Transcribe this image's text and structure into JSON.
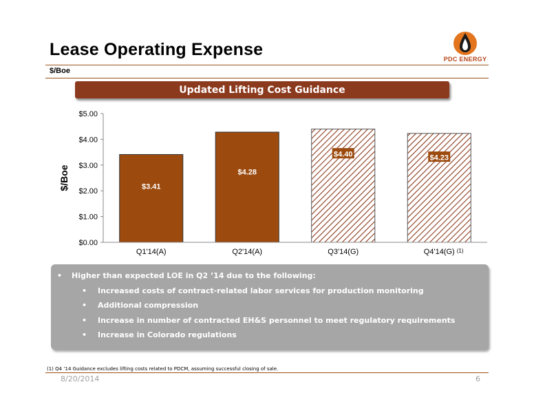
{
  "header": {
    "title": "Lease Operating Expense",
    "subtitle": "$/Boe",
    "logo_text": "PDC ENERGY"
  },
  "banner": "Updated Lifting Cost Guidance",
  "colors": {
    "accent": "#9b4f1a",
    "bar_fill": "#9c4a0e",
    "banner": "#8c3a1e",
    "notes_box": "#a6a6a6",
    "logo_orange": "#e2751e"
  },
  "chart_data": {
    "type": "bar",
    "ylabel": "$/Boe",
    "ylim": [
      0,
      5
    ],
    "yticks": [
      "$0.00",
      "$1.00",
      "$2.00",
      "$3.00",
      "$4.00",
      "$5.00"
    ],
    "categories": [
      "Q1'14(A)",
      "Q2'14(A)",
      "Q3'14(G)",
      "Q4'14(G)"
    ],
    "category_superscripts": [
      "",
      "",
      "",
      "(1)"
    ],
    "values": [
      3.41,
      4.28,
      4.4,
      4.23
    ],
    "value_labels": [
      "$3.41",
      "$4.28",
      "$4.40",
      "$4.23"
    ],
    "bar_styles": [
      "solid",
      "solid",
      "hatched",
      "hatched"
    ],
    "grid": false,
    "legend": "none"
  },
  "notes": {
    "main": "Higher than expected LOE in Q2 ’14 due to the following:",
    "items": [
      "Increased costs of contract-related labor services for production monitoring",
      "Additional compression",
      "Increase in number of contracted EH&S personnel to meet regulatory requirements",
      "Increase in Colorado regulations"
    ],
    "bullet": "•"
  },
  "footnote": "(1)  Q4 ’14 Guidance excludes lifting costs related to PDCM, assuming successful closing of sale.",
  "footer": {
    "date": "8/20/2014",
    "page": "6"
  }
}
